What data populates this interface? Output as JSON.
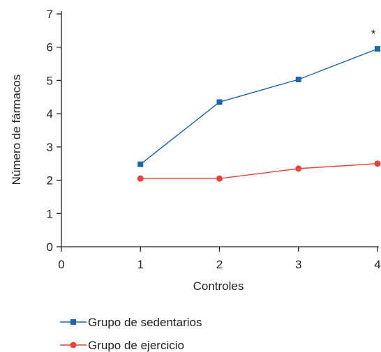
{
  "chart_data": {
    "type": "line",
    "xlabel": "Controles",
    "ylabel": "Número de fármacos",
    "xlim": [
      0,
      4
    ],
    "ylim": [
      0,
      7
    ],
    "xticks": [
      0,
      1,
      2,
      3,
      4
    ],
    "yticks": [
      0,
      1,
      2,
      3,
      4,
      5,
      6,
      7
    ],
    "grid": false,
    "legend_position": "bottom",
    "series": [
      {
        "name": "Grupo de sedentarios",
        "color": "#1a66b3",
        "marker": "square",
        "x": [
          1,
          2,
          3,
          4
        ],
        "y": [
          2.48,
          4.35,
          5.03,
          5.95
        ]
      },
      {
        "name": "Grupo de ejercicio",
        "color": "#e8433a",
        "marker": "circle",
        "x": [
          1,
          2,
          3,
          4
        ],
        "y": [
          2.05,
          2.05,
          2.35,
          2.5
        ]
      }
    ],
    "annotations": [
      {
        "text": "*",
        "x": 4,
        "y": 6.25
      }
    ]
  }
}
